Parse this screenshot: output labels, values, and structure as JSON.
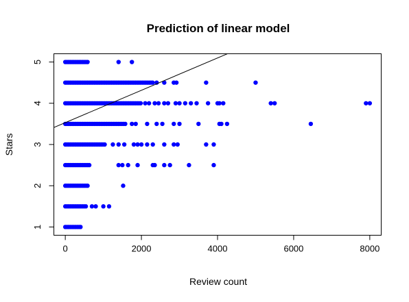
{
  "chart_data": {
    "type": "scatter",
    "title": "Prediction of linear model",
    "xlabel": "Review count",
    "ylabel": "Stars",
    "xlim": [
      -300,
      8300
    ],
    "ylim": [
      0.8,
      5.2
    ],
    "xticks": [
      0,
      2000,
      4000,
      6000,
      8000
    ],
    "yticks": [
      1,
      2,
      3,
      4,
      5
    ],
    "grid": false,
    "point_color": "#0000ff",
    "line_color": "#000000",
    "regression_line": {
      "intercept": 3.53,
      "slope": 0.000392
    },
    "points_dense_ranges": [
      {
        "y": 5.0,
        "x_from": 0,
        "x_to": 620
      },
      {
        "y": 4.5,
        "x_from": 0,
        "x_to": 2300
      },
      {
        "y": 4.0,
        "x_from": 0,
        "x_to": 2000
      },
      {
        "y": 3.5,
        "x_from": 0,
        "x_to": 1600
      },
      {
        "y": 3.0,
        "x_from": 0,
        "x_to": 1050
      },
      {
        "y": 2.5,
        "x_from": 0,
        "x_to": 650
      },
      {
        "y": 2.0,
        "x_from": 0,
        "x_to": 620
      },
      {
        "y": 1.5,
        "x_from": 0,
        "x_to": 550
      },
      {
        "y": 1.0,
        "x_from": 0,
        "x_to": 380
      }
    ],
    "points": [
      [
        1400,
        5
      ],
      [
        1750,
        5
      ],
      [
        2400,
        4.5
      ],
      [
        2600,
        4.5
      ],
      [
        2850,
        4.5
      ],
      [
        2920,
        4.5
      ],
      [
        3700,
        4.5
      ],
      [
        5000,
        4.5
      ],
      [
        2100,
        4
      ],
      [
        2200,
        4
      ],
      [
        2350,
        4
      ],
      [
        2450,
        4
      ],
      [
        2600,
        4
      ],
      [
        2700,
        4
      ],
      [
        2900,
        4
      ],
      [
        3000,
        4
      ],
      [
        3150,
        4
      ],
      [
        3300,
        4
      ],
      [
        3450,
        4
      ],
      [
        3750,
        4
      ],
      [
        4000,
        4
      ],
      [
        4050,
        4
      ],
      [
        4150,
        4
      ],
      [
        5400,
        4
      ],
      [
        5500,
        4
      ],
      [
        7900,
        4
      ],
      [
        8000,
        4
      ],
      [
        1750,
        3.5
      ],
      [
        1850,
        3.5
      ],
      [
        2150,
        3.5
      ],
      [
        2400,
        3.5
      ],
      [
        2550,
        3.5
      ],
      [
        2850,
        3.5
      ],
      [
        3000,
        3.5
      ],
      [
        3500,
        3.5
      ],
      [
        4050,
        3.5
      ],
      [
        4100,
        3.5
      ],
      [
        4250,
        3.5
      ],
      [
        6450,
        3.5
      ],
      [
        1250,
        3
      ],
      [
        1400,
        3
      ],
      [
        1550,
        3
      ],
      [
        1800,
        3
      ],
      [
        1900,
        3
      ],
      [
        2000,
        3
      ],
      [
        2150,
        3
      ],
      [
        2300,
        3
      ],
      [
        2600,
        3
      ],
      [
        2850,
        3
      ],
      [
        2950,
        3
      ],
      [
        3700,
        3
      ],
      [
        3900,
        3
      ],
      [
        1400,
        2.5
      ],
      [
        1500,
        2.5
      ],
      [
        1650,
        2.5
      ],
      [
        1900,
        2.5
      ],
      [
        2300,
        2.5
      ],
      [
        2350,
        2.5
      ],
      [
        2600,
        2.5
      ],
      [
        2750,
        2.5
      ],
      [
        3250,
        2.5
      ],
      [
        3900,
        2.5
      ],
      [
        1520,
        2
      ],
      [
        700,
        1.5
      ],
      [
        800,
        1.5
      ],
      [
        1000,
        1.5
      ],
      [
        1150,
        1.5
      ],
      [
        400,
        1
      ]
    ]
  }
}
